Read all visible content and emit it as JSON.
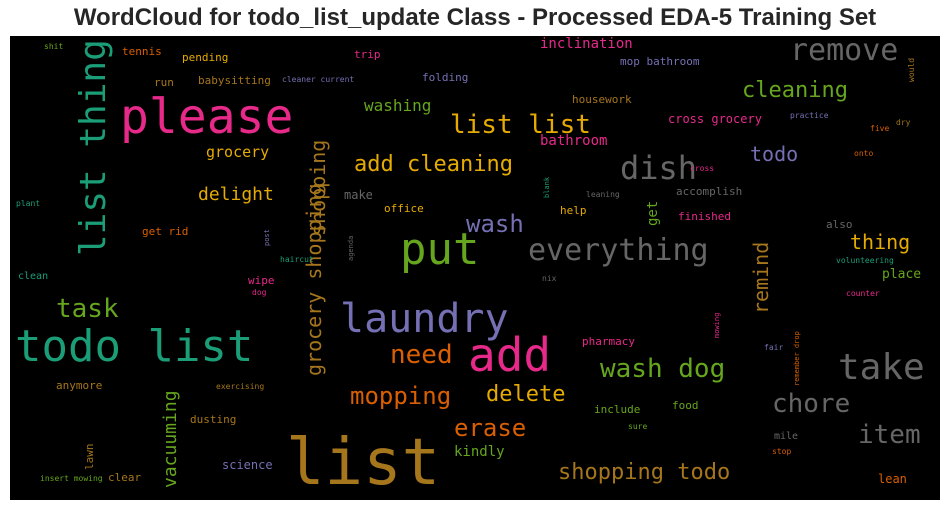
{
  "title": "WordCloud for todo_list_update Class - Processed EDA-5 Training Set",
  "words": [
    {
      "text": "list",
      "color": "#a6761d",
      "weight": 64
    },
    {
      "text": "please",
      "color": "#e7298a",
      "weight": 48
    },
    {
      "text": "todo list",
      "color": "#1b9e77",
      "weight": 44
    },
    {
      "text": "list thing",
      "color": "#1b9e77",
      "weight": 36
    },
    {
      "text": "put",
      "color": "#66a61e",
      "weight": 44
    },
    {
      "text": "add",
      "color": "#e7298a",
      "weight": 46
    },
    {
      "text": "laundry",
      "color": "#7570b3",
      "weight": 40
    },
    {
      "text": "take",
      "color": "#666666",
      "weight": 36
    },
    {
      "text": "remove",
      "color": "#666666",
      "weight": 30
    },
    {
      "text": "dish",
      "color": "#666666",
      "weight": 32
    },
    {
      "text": "everything",
      "color": "#666666",
      "weight": 30
    },
    {
      "text": "list list",
      "color": "#e6ab02",
      "weight": 26
    },
    {
      "text": "cleaning",
      "color": "#66a61e",
      "weight": 22
    },
    {
      "text": "add cleaning",
      "color": "#e6ab02",
      "weight": 22
    },
    {
      "text": "wash",
      "color": "#7570b3",
      "weight": 24
    },
    {
      "text": "wash dog",
      "color": "#66a61e",
      "weight": 26
    },
    {
      "text": "need",
      "color": "#d95f02",
      "weight": 26
    },
    {
      "text": "mopping",
      "color": "#d95f02",
      "weight": 24
    },
    {
      "text": "delete",
      "color": "#e6ab02",
      "weight": 22
    },
    {
      "text": "erase",
      "color": "#d95f02",
      "weight": 24
    },
    {
      "text": "chore",
      "color": "#666666",
      "weight": 26
    },
    {
      "text": "item",
      "color": "#666666",
      "weight": 26
    },
    {
      "text": "shopping todo",
      "color": "#a6761d",
      "weight": 22
    },
    {
      "text": "task",
      "color": "#66a61e",
      "weight": 26
    },
    {
      "text": "shopping",
      "color": "#a6761d",
      "weight": 20
    },
    {
      "text": "grocery shopping",
      "color": "#a6761d",
      "weight": 20
    },
    {
      "text": "remind",
      "color": "#a6761d",
      "weight": 20
    },
    {
      "text": "vacuuming",
      "color": "#66a61e",
      "weight": 18
    },
    {
      "text": "todo",
      "color": "#7570b3",
      "weight": 20
    },
    {
      "text": "thing",
      "color": "#e6ab02",
      "weight": 20
    },
    {
      "text": "delight",
      "color": "#e6ab02",
      "weight": 18
    },
    {
      "text": "grocery",
      "color": "#e6ab02",
      "weight": 15
    },
    {
      "text": "washing",
      "color": "#66a61e",
      "weight": 16
    },
    {
      "text": "bathroom",
      "color": "#e7298a",
      "weight": 14
    },
    {
      "text": "inclination",
      "color": "#e7298a",
      "weight": 14
    },
    {
      "text": "cross grocery",
      "color": "#e7298a",
      "weight": 12
    },
    {
      "text": "get",
      "color": "#66a61e",
      "weight": 14
    },
    {
      "text": "kindly",
      "color": "#66a61e",
      "weight": 14
    },
    {
      "text": "science",
      "color": "#7570b3",
      "weight": 12
    },
    {
      "text": "place",
      "color": "#66a61e",
      "weight": 13
    },
    {
      "text": "housework",
      "color": "#a6761d",
      "weight": 11
    },
    {
      "text": "mop bathroom",
      "color": "#7570b3",
      "weight": 11
    },
    {
      "text": "folding",
      "color": "#7570b3",
      "weight": 11
    },
    {
      "text": "pending",
      "color": "#e6ab02",
      "weight": 11
    },
    {
      "text": "babysitting",
      "color": "#a6761d",
      "weight": 11
    },
    {
      "text": "tennis",
      "color": "#d95f02",
      "weight": 11
    },
    {
      "text": "trip",
      "color": "#e7298a",
      "weight": 11
    },
    {
      "text": "run",
      "color": "#a6761d",
      "weight": 11
    },
    {
      "text": "make",
      "color": "#666666",
      "weight": 12
    },
    {
      "text": "office",
      "color": "#e6ab02",
      "weight": 11
    },
    {
      "text": "help",
      "color": "#e6ab02",
      "weight": 11
    },
    {
      "text": "accomplish",
      "color": "#666666",
      "weight": 11
    },
    {
      "text": "finished",
      "color": "#e7298a",
      "weight": 11
    },
    {
      "text": "also",
      "color": "#666666",
      "weight": 11
    },
    {
      "text": "get rid",
      "color": "#d95f02",
      "weight": 11
    },
    {
      "text": "wipe",
      "color": "#e7298a",
      "weight": 11
    },
    {
      "text": "pharmacy",
      "color": "#e7298a",
      "weight": 11
    },
    {
      "text": "include",
      "color": "#66a61e",
      "weight": 11
    },
    {
      "text": "food",
      "color": "#66a61e",
      "weight": 11
    },
    {
      "text": "dusting",
      "color": "#a6761d",
      "weight": 11
    },
    {
      "text": "anymore",
      "color": "#a6761d",
      "weight": 11
    },
    {
      "text": "clear",
      "color": "#a6761d",
      "weight": 11
    },
    {
      "text": "lawn",
      "color": "#a6761d",
      "weight": 11
    },
    {
      "text": "mile",
      "color": "#666666",
      "weight": 10
    },
    {
      "text": "lean",
      "color": "#d95f02",
      "weight": 12
    },
    {
      "text": "clean",
      "color": "#1b9e77",
      "weight": 10
    },
    {
      "text": "shit",
      "color": "#66a61e",
      "weight": 8
    },
    {
      "text": "cleaner current",
      "color": "#7570b3",
      "weight": 8
    },
    {
      "text": "practice",
      "color": "#7570b3",
      "weight": 8
    },
    {
      "text": "five",
      "color": "#d95f02",
      "weight": 8
    },
    {
      "text": "dry",
      "color": "#a6761d",
      "weight": 8
    },
    {
      "text": "onto",
      "color": "#d95f02",
      "weight": 8
    },
    {
      "text": "cross",
      "color": "#e7298a",
      "weight": 8
    },
    {
      "text": "leaning",
      "color": "#666666",
      "weight": 8
    },
    {
      "text": "plant",
      "color": "#1b9e77",
      "weight": 8
    },
    {
      "text": "haircut",
      "color": "#1b9e77",
      "weight": 8
    },
    {
      "text": "dog",
      "color": "#e7298a",
      "weight": 8
    },
    {
      "text": "nix",
      "color": "#666666",
      "weight": 8
    },
    {
      "text": "volunteering",
      "color": "#1b9e77",
      "weight": 8
    },
    {
      "text": "counter",
      "color": "#e7298a",
      "weight": 8
    },
    {
      "text": "exercising",
      "color": "#a6761d",
      "weight": 8
    },
    {
      "text": "fair",
      "color": "#7570b3",
      "weight": 8
    },
    {
      "text": "stop",
      "color": "#d95f02",
      "weight": 8
    },
    {
      "text": "sure",
      "color": "#66a61e",
      "weight": 8
    },
    {
      "text": "insert mowing",
      "color": "#66a61e",
      "weight": 8
    },
    {
      "text": "would",
      "color": "#a6761d",
      "weight": 8
    },
    {
      "text": "blank",
      "color": "#1b9e77",
      "weight": 7
    },
    {
      "text": "post",
      "color": "#7570b3",
      "weight": 7
    },
    {
      "text": "agenda",
      "color": "#666666",
      "weight": 7
    },
    {
      "text": "mowing",
      "color": "#e7298a",
      "weight": 7
    },
    {
      "text": "remember drop",
      "color": "#d95f02",
      "weight": 7
    }
  ]
}
